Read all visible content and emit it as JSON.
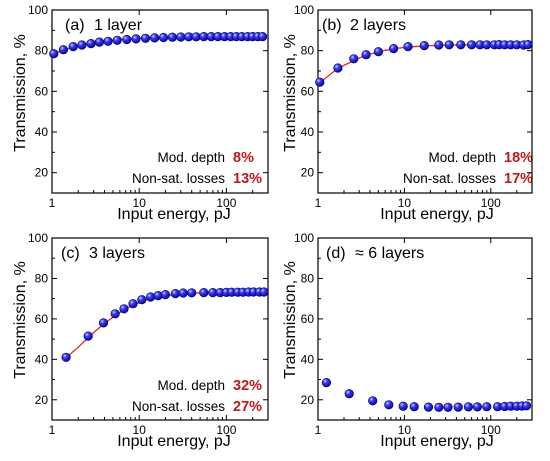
{
  "colors": {
    "fit": "#e8231f",
    "marker": "#1a1adc",
    "marker_edge": "#000066",
    "highlight": "#c01818",
    "axis": "#000000"
  },
  "chart_data": [
    {
      "type": "scatter",
      "panel": "(a)",
      "title": "1 layer",
      "xlabel": "Input energy, pJ",
      "ylabel": "Transmission, %",
      "xscale": "log",
      "xlim": [
        1,
        300
      ],
      "ylim": [
        10,
        100
      ],
      "xticks": [
        {
          "v": 1,
          "label": "1"
        },
        {
          "v": 10,
          "label": "10"
        },
        {
          "v": 100,
          "label": "100"
        }
      ],
      "yticks": [
        20,
        40,
        60,
        80,
        100
      ],
      "annotations": [
        {
          "label": "Mod. depth",
          "value": "8%"
        },
        {
          "label": "Non-sat. losses",
          "value": "13%"
        }
      ],
      "series": [
        {
          "x": [
            1.05,
            1.35,
            1.75,
            2.2,
            2.8,
            3.5,
            4.4,
            5.6,
            7.2,
            9.2,
            11.8,
            15,
            19,
            24,
            30,
            37,
            45,
            55,
            67,
            80,
            95,
            112,
            130,
            150,
            175,
            200,
            230,
            260
          ],
          "y": [
            78.5,
            80.5,
            82,
            82.8,
            83.5,
            84.2,
            84.6,
            85.1,
            85.5,
            85.8,
            86.1,
            86.3,
            86.5,
            86.6,
            86.7,
            86.8,
            86.8,
            86.9,
            86.9,
            86.9,
            86.9,
            86.9,
            86.9,
            86.9,
            86.9,
            86.9,
            86.9,
            86.9
          ]
        }
      ],
      "fit": {
        "x": [
          1,
          1.5,
          2,
          3,
          5,
          8,
          12,
          20,
          40,
          80,
          150,
          260
        ],
        "y": [
          78.3,
          80.9,
          82.3,
          83.9,
          85.2,
          85.9,
          86.3,
          86.6,
          86.8,
          86.9,
          86.9,
          86.9
        ]
      }
    },
    {
      "type": "scatter",
      "panel": "(b)",
      "title": "2 layers",
      "xlabel": "Input energy, pJ",
      "ylabel": "Transmission, %",
      "xscale": "log",
      "xlim": [
        1,
        300
      ],
      "ylim": [
        10,
        100
      ],
      "xticks": [
        {
          "v": 1,
          "label": "1"
        },
        {
          "v": 10,
          "label": "10"
        },
        {
          "v": 100,
          "label": "100"
        }
      ],
      "yticks": [
        20,
        40,
        60,
        80,
        100
      ],
      "annotations": [
        {
          "label": "Mod. depth",
          "value": "18%"
        },
        {
          "label": "Non-sat. losses",
          "value": "17%"
        }
      ],
      "series": [
        {
          "x": [
            1.05,
            1.7,
            2.6,
            3.6,
            5,
            7.5,
            11,
            17,
            25,
            33,
            45,
            60,
            75,
            90,
            110,
            125,
            145,
            170,
            200,
            240,
            270
          ],
          "y": [
            64.5,
            71.5,
            76,
            78,
            79.5,
            81,
            82,
            82.5,
            82.8,
            82.9,
            82.9,
            82.9,
            82.9,
            82.9,
            82.9,
            83,
            82.9,
            82.9,
            82.9,
            82.8,
            83
          ]
        }
      ],
      "fit": {
        "x": [
          1,
          1.5,
          2,
          3,
          4,
          6,
          8,
          12,
          20,
          35,
          60,
          120,
          270
        ],
        "y": [
          63.5,
          69.5,
          72.8,
          76.4,
          78.3,
          80.2,
          81.1,
          81.9,
          82.5,
          82.8,
          82.9,
          82.9,
          82.9
        ]
      }
    },
    {
      "type": "scatter",
      "panel": "(c)",
      "title": "3 layers",
      "xlabel": "Input energy, pJ",
      "ylabel": "Transmission, %",
      "xscale": "log",
      "xlim": [
        1,
        300
      ],
      "ylim": [
        10,
        100
      ],
      "xticks": [
        {
          "v": 1,
          "label": "1"
        },
        {
          "v": 10,
          "label": "10"
        },
        {
          "v": 100,
          "label": "100"
        }
      ],
      "yticks": [
        20,
        40,
        60,
        80,
        100
      ],
      "annotations": [
        {
          "label": "Mod. depth",
          "value": "32%"
        },
        {
          "label": "Non-sat. losses",
          "value": "27%"
        }
      ],
      "series": [
        {
          "x": [
            1.45,
            2.6,
            3.9,
            5.3,
            6.7,
            8.5,
            10.7,
            13.5,
            16.5,
            20,
            26,
            32,
            40,
            55,
            70,
            85,
            100,
            115,
            135,
            155,
            180,
            205,
            240,
            270
          ],
          "y": [
            41,
            51.5,
            58,
            62.5,
            65,
            67.5,
            69.5,
            70.8,
            71.5,
            72,
            72.5,
            72.8,
            72.9,
            73,
            73,
            73,
            73.1,
            73.2,
            73.2,
            73.2,
            73.3,
            73.3,
            73.3,
            73.3
          ]
        }
      ],
      "fit": {
        "x": [
          1.45,
          2,
          3,
          4,
          6,
          8,
          12,
          18,
          30,
          50,
          90,
          270
        ],
        "y": [
          40.8,
          46,
          53.2,
          57.8,
          63.2,
          66.3,
          69.3,
          71.1,
          72.4,
          72.9,
          73.1,
          73.2
        ]
      }
    },
    {
      "type": "scatter",
      "panel": "(d)",
      "title": "≈ 6 layers",
      "xlabel": "Input energy, pJ",
      "ylabel": "Transmission, %",
      "xscale": "log",
      "xlim": [
        1,
        300
      ],
      "ylim": [
        10,
        100
      ],
      "xticks": [
        {
          "v": 1,
          "label": "1"
        },
        {
          "v": 10,
          "label": "10"
        },
        {
          "v": 100,
          "label": "100"
        }
      ],
      "yticks": [
        20,
        40,
        60,
        80,
        100
      ],
      "annotations": [],
      "series": [
        {
          "x": [
            1.25,
            2.3,
            4.3,
            6.6,
            9.7,
            13,
            19,
            25,
            32,
            42,
            55,
            70,
            90,
            120,
            145,
            170,
            200,
            230,
            260
          ],
          "y": [
            28.5,
            23,
            19.5,
            17.5,
            16.8,
            16.6,
            16.4,
            16.3,
            16.3,
            16.4,
            16.5,
            16.5,
            16.6,
            16.6,
            16.7,
            16.8,
            16.8,
            16.9,
            17
          ]
        }
      ]
    }
  ]
}
